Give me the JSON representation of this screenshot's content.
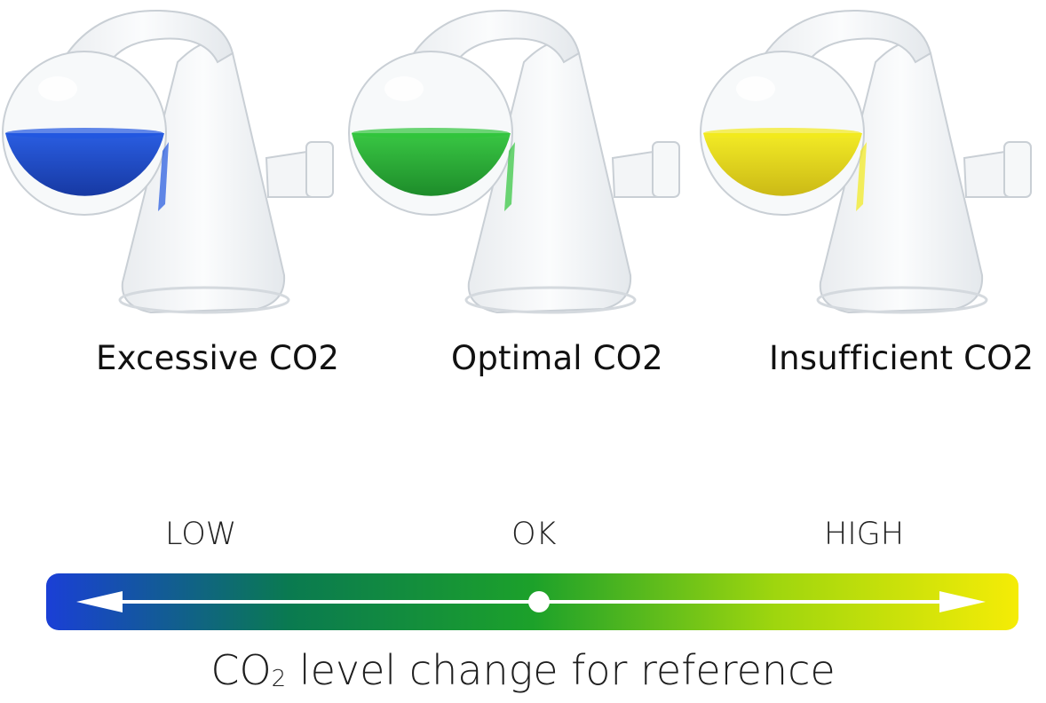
{
  "checkers": [
    {
      "label": "Excessive CO2",
      "liquid_color": "#1f55e0",
      "liquid_dark": "#0b2f9e"
    },
    {
      "label": "Optimal CO2",
      "liquid_color": "#2fc43a",
      "liquid_dark": "#12861f"
    },
    {
      "label": "Insufficient CO2",
      "liquid_color": "#f2ea1a",
      "liquid_dark": "#c9b60a"
    }
  ],
  "scale": {
    "low_label": "LOW",
    "ok_label": "OK",
    "high_label": "HIGH",
    "gradient_colors": [
      "#1a3fd6",
      "#0a7a50",
      "#1ca12a",
      "#9fd60e",
      "#f5ec06"
    ]
  },
  "caption": {
    "prefix": "CO",
    "subscript": "2",
    "suffix": " level change for reference"
  }
}
